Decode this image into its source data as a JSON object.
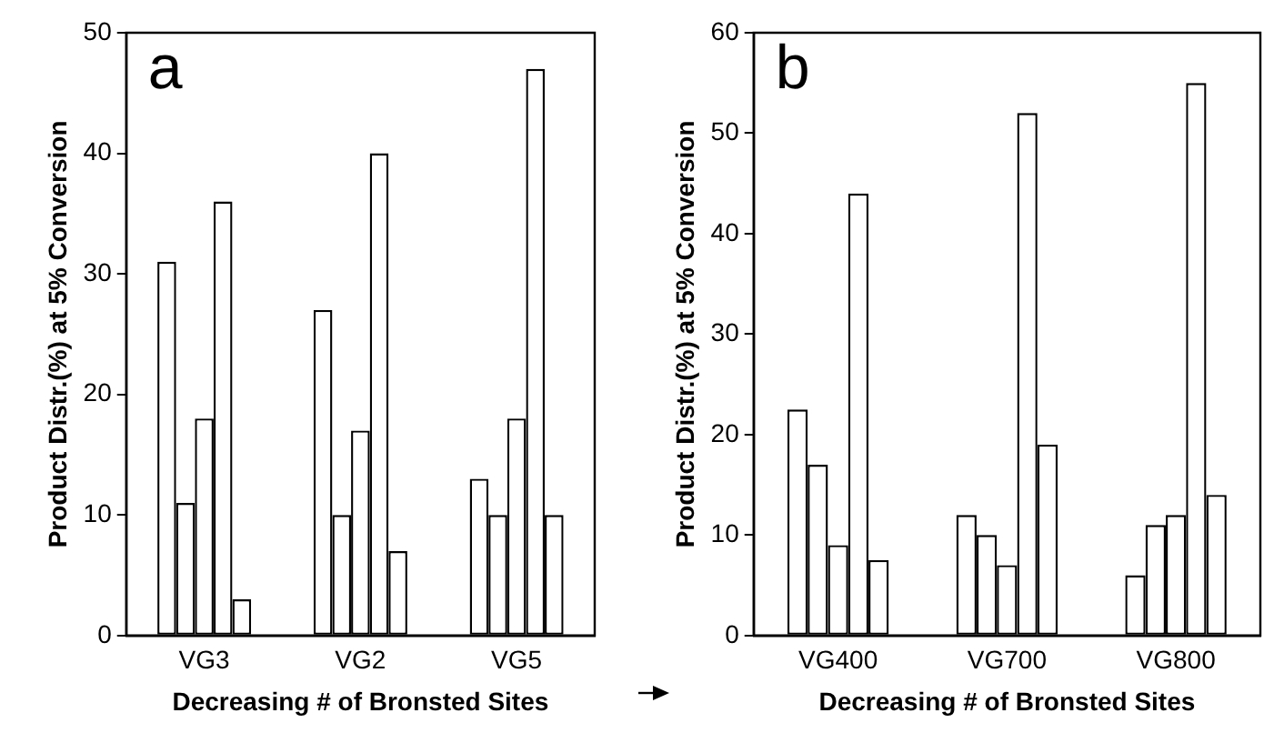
{
  "chart_data": [
    {
      "type": "bar",
      "title": "a",
      "xlabel": "Decreasing # of Bronsted Sites",
      "ylabel": "Product Distr.(%) at 5% Conversion",
      "categories": [
        "VG3",
        "VG2",
        "VG5"
      ],
      "series": [
        {
          "color": "#ffffff",
          "values": [
            31,
            27,
            13
          ]
        },
        {
          "color": "#ffffff",
          "values": [
            11,
            10,
            10
          ]
        },
        {
          "color": "#ffffff",
          "values": [
            18,
            17,
            18
          ]
        },
        {
          "color": "#ffffff",
          "values": [
            36,
            40,
            47
          ]
        },
        {
          "color": "#ffffff",
          "values": [
            3,
            7,
            10
          ]
        }
      ],
      "ylim": [
        0,
        50
      ],
      "yticks": [
        0,
        10,
        20,
        30,
        40,
        50
      ],
      "grid": false,
      "legend": false
    },
    {
      "type": "bar",
      "title": "b",
      "xlabel": "Decreasing # of Bronsted Sites",
      "ylabel": "Product Distr.(%) at 5% Conversion",
      "categories": [
        "VG400",
        "VG700",
        "VG800"
      ],
      "series": [
        {
          "color": "#ffffff",
          "values": [
            22.5,
            12,
            6
          ]
        },
        {
          "color": "#ffffff",
          "values": [
            17,
            10,
            11
          ]
        },
        {
          "color": "#ffffff",
          "values": [
            9,
            7,
            12
          ]
        },
        {
          "color": "#ffffff",
          "values": [
            44,
            52,
            55
          ]
        },
        {
          "color": "#ffffff",
          "values": [
            7.5,
            19,
            14
          ]
        }
      ],
      "ylim": [
        0,
        60
      ],
      "yticks": [
        0,
        10,
        20,
        30,
        40,
        50,
        60
      ],
      "grid": false,
      "legend": false
    }
  ]
}
